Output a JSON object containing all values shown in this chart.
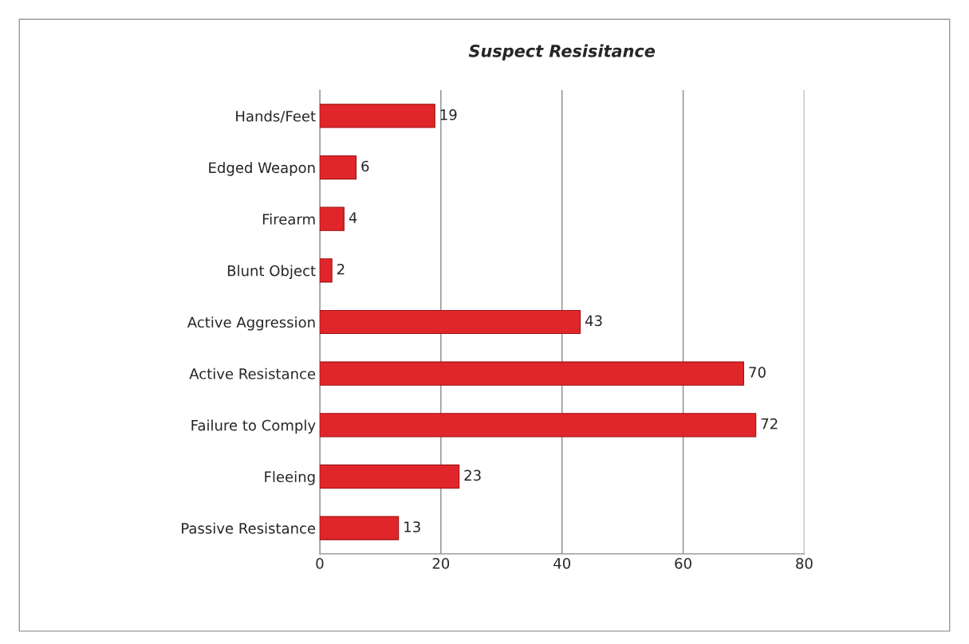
{
  "chart_data": {
    "type": "bar",
    "orientation": "horizontal",
    "title": "Suspect Resisitance",
    "categories": [
      "Hands/Feet",
      "Edged Weapon",
      "Firearm",
      "Blunt Object",
      "Active Aggression",
      "Active Resistance",
      "Failure to Comply",
      "Fleeing",
      "Passive Resistance"
    ],
    "values": [
      19,
      6,
      4,
      2,
      43,
      70,
      72,
      23,
      13
    ],
    "color": "#e0262b",
    "xlim": [
      0,
      80
    ],
    "xticks": [
      0,
      20,
      40,
      60,
      80
    ],
    "grid": "x",
    "data_labels": true
  }
}
